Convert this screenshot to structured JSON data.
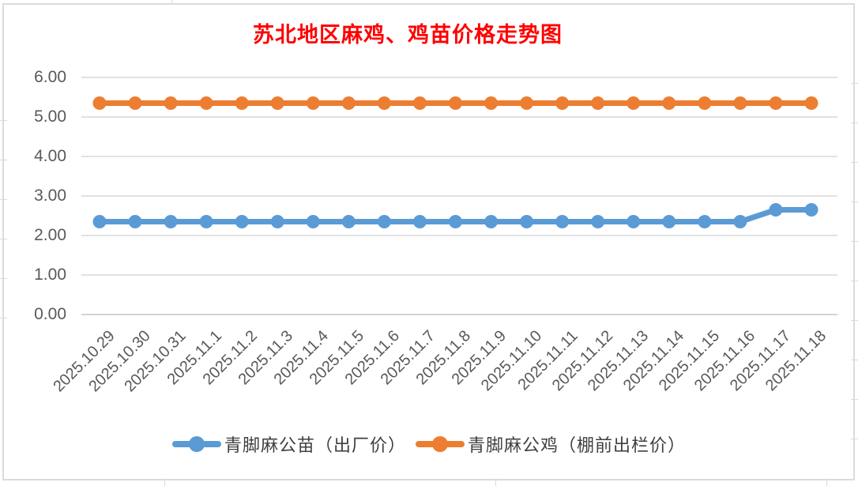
{
  "title": {
    "text": "苏北地区麻鸡、鸡苗价格走势图",
    "color": "#FF0000"
  },
  "chart_data": {
    "type": "line",
    "title": "苏北地区麻鸡、鸡苗价格走势图",
    "categories": [
      "2025.10.29",
      "2025.10.30",
      "2025.10.31",
      "2025.11.1",
      "2025.11.2",
      "2025.11.3",
      "2025.11.4",
      "2025.11.5",
      "2025.11.6",
      "2025.11.7",
      "2025.11.8",
      "2025.11.9",
      "2025.11.10",
      "2025.11.11",
      "2025.11.12",
      "2025.11.13",
      "2025.11.14",
      "2025.11.15",
      "2025.11.16",
      "2025.11.17",
      "2025.11.18"
    ],
    "series": [
      {
        "name": "青脚麻公苗（出厂价）",
        "color": "#5B9BD5",
        "values": [
          2.35,
          2.35,
          2.35,
          2.35,
          2.35,
          2.35,
          2.35,
          2.35,
          2.35,
          2.35,
          2.35,
          2.35,
          2.35,
          2.35,
          2.35,
          2.35,
          2.35,
          2.35,
          2.35,
          2.65,
          2.65
        ]
      },
      {
        "name": "青脚麻公鸡（棚前出栏价）",
        "color": "#ED7D31",
        "values": [
          5.35,
          5.35,
          5.35,
          5.35,
          5.35,
          5.35,
          5.35,
          5.35,
          5.35,
          5.35,
          5.35,
          5.35,
          5.35,
          5.35,
          5.35,
          5.35,
          5.35,
          5.35,
          5.35,
          5.35,
          5.35
        ]
      }
    ],
    "xlabel": "",
    "ylabel": "",
    "ylim": [
      0,
      6
    ],
    "ytick_labels": [
      "0.00",
      "1.00",
      "2.00",
      "3.00",
      "4.00",
      "5.00",
      "6.00"
    ],
    "grid": true,
    "legend_position": "bottom"
  },
  "style": {
    "axis_label_color": "#595959",
    "gridline_color": "#D9D9D9",
    "baseline_color": "#C6C6C6",
    "legend_text_color": "#3F3F3F",
    "frame_color": "#DBDBDB"
  }
}
